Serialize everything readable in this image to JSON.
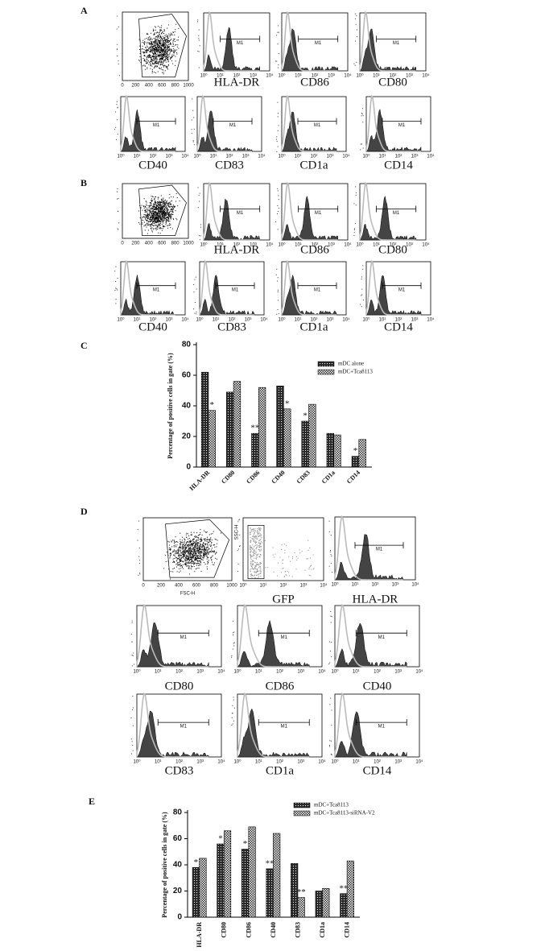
{
  "figure": {
    "panel_labels": [
      "A",
      "B",
      "C",
      "D",
      "E"
    ],
    "scatter_ticks": [
      "0",
      "200",
      "400",
      "600",
      "800",
      "1000"
    ],
    "log_ticks": [
      "10⁰",
      "10¹",
      "10²",
      "10³",
      "10⁴"
    ],
    "gate_label": "M1",
    "fsc_label": "FSC-H",
    "ssc_label": "SSC-H",
    "panel_a": [
      "HLA-DR",
      "CD86",
      "CD80",
      "CD40",
      "CD83",
      "CD1a",
      "CD14"
    ],
    "panel_b": [
      "HLA-DR",
      "CD86",
      "CD80",
      "CD40",
      "CD83",
      "CD1a",
      "CD14"
    ],
    "panel_d": [
      "GFP",
      "HLA-DR",
      "CD80",
      "CD86",
      "CD40",
      "CD83",
      "CD1a",
      "CD14"
    ]
  },
  "chart_data": [
    {
      "type": "bar",
      "y_label": "Percentage of positive cells in gate (%)",
      "categories": [
        "HLA-DR",
        "CD80",
        "CD86",
        "CD40",
        "CD83",
        "CD1a",
        "CD14"
      ],
      "series": [
        {
          "name": "mDC alone",
          "color": "#2a2a2a",
          "values": [
            62,
            49,
            22,
            53,
            30,
            22,
            7
          ]
        },
        {
          "name": "mDC+Tca8113",
          "color": "#2a2a2a",
          "values": [
            37,
            56,
            52,
            38,
            41,
            21,
            18
          ]
        }
      ],
      "ylim": [
        0,
        80
      ],
      "yticks": [
        0,
        20,
        40,
        60,
        80
      ],
      "annotations": [
        {
          "text": "*",
          "series": 1,
          "category": 0
        },
        {
          "text": "**",
          "series": 0,
          "category": 2
        },
        {
          "text": "*",
          "series": 1,
          "category": 3
        },
        {
          "text": "*",
          "series": 0,
          "category": 4
        },
        {
          "text": "*",
          "series": 0,
          "category": 6
        }
      ]
    },
    {
      "type": "bar",
      "y_label": "Percentage of positive cells in gate (%)",
      "categories": [
        "HLA-DR",
        "CD80",
        "CD86",
        "CD40",
        "CD83",
        "CD1a",
        "CD14"
      ],
      "series": [
        {
          "name": "mDC+Tca8113",
          "color": "#2a2a2a",
          "values": [
            38,
            56,
            52,
            37,
            41,
            20,
            18
          ]
        },
        {
          "name": "mDC+Tca8113-siRNA-V2",
          "color": "#2a2a2a",
          "values": [
            45,
            66,
            69,
            64,
            15,
            22,
            43
          ]
        }
      ],
      "ylim": [
        0,
        80
      ],
      "yticks": [
        0,
        20,
        40,
        60,
        80
      ],
      "annotations": [
        {
          "text": "*",
          "series": 0,
          "category": 0
        },
        {
          "text": "*",
          "series": 0,
          "category": 1
        },
        {
          "text": "*",
          "series": 0,
          "category": 2
        },
        {
          "text": "**",
          "series": 0,
          "category": 3
        },
        {
          "text": "**",
          "series": 1,
          "category": 4
        },
        {
          "text": "**",
          "series": 0,
          "category": 6
        }
      ]
    }
  ]
}
